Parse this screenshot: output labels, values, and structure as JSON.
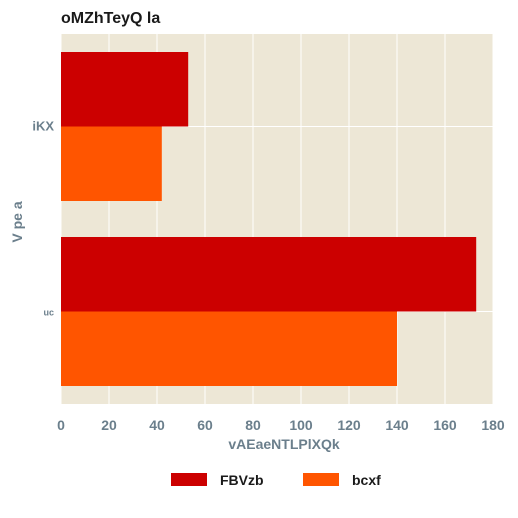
{
  "chart_data": {
    "type": "bar",
    "orientation": "horizontal",
    "title": "oMZhTeyQ la",
    "xlabel": "vAEaeNTLPlXQk",
    "ylabel": "V pe a",
    "categories": [
      "iKX",
      "uc"
    ],
    "series": [
      {
        "name": "FBVzb",
        "color": "#cc0000",
        "values": [
          53,
          173
        ]
      },
      {
        "name": "bcxf",
        "color": "#ff5500",
        "values": [
          42,
          140
        ]
      }
    ],
    "xlim": [
      0,
      180
    ],
    "xticks": [
      "0",
      "20",
      "40",
      "60",
      "80",
      "100",
      "120",
      "140",
      "160",
      "180"
    ],
    "grid": true,
    "legend_position": "bottom",
    "background": "#ede7d6"
  }
}
